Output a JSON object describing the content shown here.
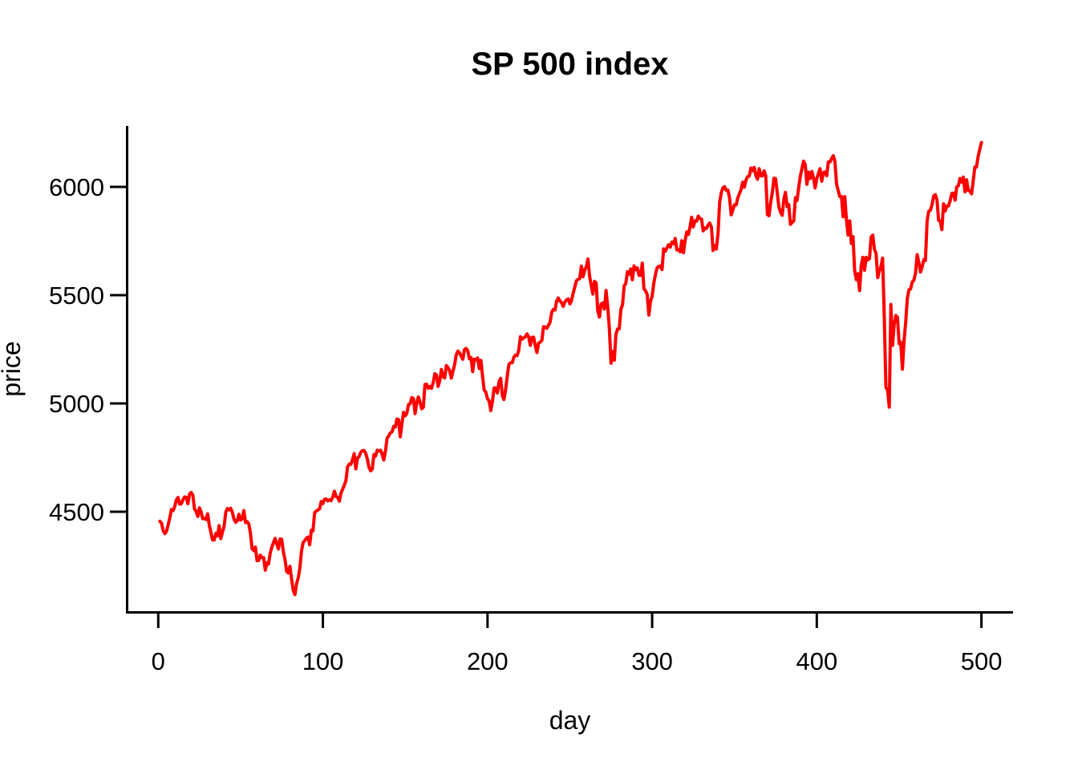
{
  "chart_data": {
    "type": "line",
    "title": "SP 500 index",
    "xlabel": "day",
    "ylabel": "price",
    "x_ticks": [
      0,
      100,
      200,
      300,
      400,
      500
    ],
    "y_ticks": [
      4500,
      5000,
      5500,
      6000
    ],
    "xlim": [
      -20,
      521
    ],
    "ylim": [
      4035,
      6290
    ],
    "grid": false,
    "legend": "none",
    "line_color": "#ff0000",
    "axis_color": "#000000",
    "background_color": "#ffffff",
    "series": [
      {
        "name": "price",
        "x_start": 1,
        "x_step": 1,
        "values": [
          4456,
          4447,
          4412,
          4399,
          4410,
          4439,
          4472,
          4510,
          4505,
          4523,
          4555,
          4566,
          4535,
          4536,
          4555,
          4568,
          4567,
          4537,
          4582,
          4589,
          4577,
          4513,
          4502,
          4478,
          4518,
          4499,
          4468,
          4469,
          4464,
          4490,
          4438,
          4404,
          4370,
          4370,
          4400,
          4388,
          4436,
          4376,
          4406,
          4433,
          4498,
          4515,
          4508,
          4516,
          4497,
          4466,
          4451,
          4458,
          4488,
          4462,
          4467,
          4505,
          4450,
          4454,
          4444,
          4402,
          4330,
          4320,
          4337,
          4274,
          4275,
          4300,
          4288,
          4288,
          4230,
          4264,
          4258,
          4309,
          4336,
          4358,
          4377,
          4350,
          4328,
          4374,
          4373,
          4315,
          4278,
          4224,
          4217,
          4248,
          4187,
          4137,
          4117,
          4167,
          4194,
          4238,
          4318,
          4358,
          4366,
          4378,
          4383,
          4347,
          4415,
          4412,
          4496,
          4503,
          4508,
          4514,
          4547,
          4538,
          4557,
          4559,
          4550,
          4555,
          4551,
          4568,
          4595,
          4570,
          4567,
          4549,
          4586,
          4604,
          4622,
          4644,
          4707,
          4720,
          4719,
          4741,
          4768,
          4698,
          4747,
          4755,
          4775,
          4782,
          4783,
          4770,
          4743,
          4705,
          4689,
          4697,
          4764,
          4757,
          4784,
          4780,
          4784,
          4766,
          4739,
          4781,
          4840,
          4850,
          4865,
          4869,
          4894,
          4891,
          4928,
          4925,
          4846,
          4906,
          4959,
          4943,
          4954,
          4995,
          4998,
          5027,
          5022,
          4953,
          5001,
          5030,
          5006,
          4976,
          4982,
          5087,
          5089,
          5070,
          5078,
          5070,
          5096,
          5137,
          5131,
          5079,
          5105,
          5157,
          5124,
          5118,
          5175,
          5165,
          5151,
          5117,
          5149,
          5179,
          5225,
          5242,
          5234,
          5218,
          5204,
          5249,
          5254,
          5244,
          5206,
          5212,
          5147,
          5204,
          5202,
          5210,
          5161,
          5199,
          5123,
          5062,
          5051,
          5022,
          5011,
          4967,
          5011,
          5071,
          5072,
          5048,
          5100,
          5116,
          5036,
          5018,
          5064,
          5128,
          5181,
          5188,
          5188,
          5214,
          5223,
          5221,
          5247,
          5308,
          5297,
          5303,
          5308,
          5321,
          5307,
          5268,
          5305,
          5306,
          5267,
          5235,
          5278,
          5283,
          5291,
          5354,
          5353,
          5347,
          5361,
          5375,
          5421,
          5434,
          5432,
          5473,
          5487,
          5473,
          5465,
          5448,
          5469,
          5478,
          5483,
          5460,
          5475,
          5509,
          5537,
          5567,
          5573,
          5577,
          5634,
          5585,
          5615,
          5631,
          5667,
          5588,
          5545,
          5505,
          5564,
          5556,
          5427,
          5399,
          5459,
          5464,
          5436,
          5522,
          5447,
          5347,
          5186,
          5240,
          5200,
          5319,
          5344,
          5344,
          5434,
          5455,
          5543,
          5554,
          5608,
          5597,
          5621,
          5571,
          5635,
          5617,
          5626,
          5592,
          5592,
          5648,
          5529,
          5520,
          5503,
          5408,
          5471,
          5496,
          5554,
          5596,
          5626,
          5633,
          5635,
          5618,
          5714,
          5703,
          5719,
          5733,
          5722,
          5745,
          5738,
          5762,
          5709,
          5710,
          5700,
          5751,
          5696,
          5751,
          5792,
          5780,
          5815,
          5860,
          5815,
          5843,
          5842,
          5865,
          5854,
          5851,
          5797,
          5810,
          5808,
          5824,
          5833,
          5814,
          5706,
          5729,
          5713,
          5783,
          5929,
          5973,
          5996,
          6001,
          5984,
          5985,
          5949,
          5871,
          5894,
          5917,
          5917,
          5949,
          5969,
          5987,
          6022,
          5999,
          6032,
          6047,
          6050,
          6087,
          6075,
          6090,
          6053,
          6035,
          6084,
          6051,
          6051,
          6074,
          6051,
          5872,
          5867,
          5931,
          5974,
          6040,
          6038,
          5971,
          5907,
          5882,
          5869,
          5943,
          5975,
          5909,
          5918,
          5827,
          5836,
          5843,
          5950,
          5937,
          5997,
          6049,
          6086,
          6119,
          6101,
          6012,
          6068,
          6039,
          6071,
          6041,
          5995,
          6038,
          6062,
          6084,
          6026,
          6066,
          6069,
          6052,
          6115,
          6115,
          6130,
          6144,
          6118,
          6013,
          5983,
          5955,
          5956,
          5862,
          5955,
          5850,
          5778,
          5843,
          5739,
          5770,
          5615,
          5572,
          5599,
          5521,
          5639,
          5675,
          5615,
          5675,
          5663,
          5668,
          5768,
          5777,
          5712,
          5693,
          5581,
          5612,
          5633,
          5671,
          5396,
          5074,
          5062,
          4983,
          5457,
          5268,
          5363,
          5406,
          5397,
          5276,
          5283,
          5158,
          5288,
          5376,
          5485,
          5525,
          5529,
          5561,
          5569,
          5604,
          5687,
          5650,
          5607,
          5631,
          5664,
          5660,
          5844,
          5887,
          5893,
          5917,
          5958,
          5964,
          5940,
          5845,
          5842,
          5803,
          5922,
          5889,
          5912,
          5912,
          5936,
          5970,
          5971,
          5939,
          6000,
          6006,
          6039,
          6022,
          6045,
          5977,
          6033,
          5983,
          5981,
          5968,
          6025,
          6092,
          6092,
          6141,
          6173,
          6205
        ]
      }
    ]
  }
}
